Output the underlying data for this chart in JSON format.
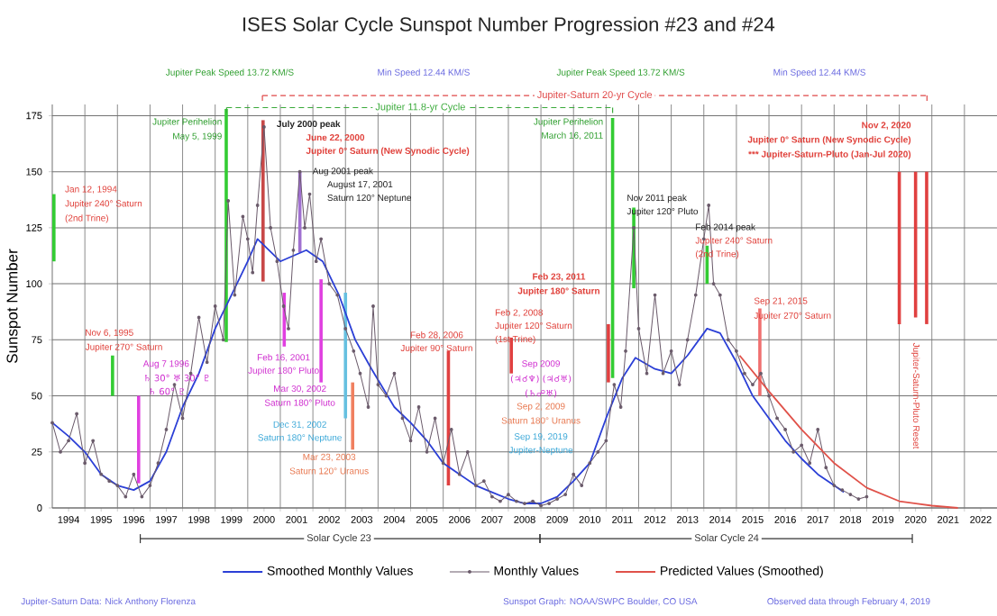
{
  "chart_data": {
    "type": "line",
    "title": "ISES Solar Cycle Sunspot Number Progression  #23 and #24",
    "ylabel": "Sunspot Number",
    "xlim": [
      1994,
      2023
    ],
    "ylim": [
      0,
      180
    ],
    "xticks": [
      {
        "value": 1994.5,
        "label": "1994"
      },
      {
        "value": 1995.5,
        "label": "1995"
      },
      {
        "value": 1996.5,
        "label": "1996"
      },
      {
        "value": 1997.5,
        "label": "1997"
      },
      {
        "value": 1998.5,
        "label": "1998"
      },
      {
        "value": 1999.5,
        "label": "1999"
      },
      {
        "value": 2000.5,
        "label": "2000"
      },
      {
        "value": 2001.5,
        "label": "2001"
      },
      {
        "value": 2002.5,
        "label": "2002"
      },
      {
        "value": 2003.5,
        "label": "2003"
      },
      {
        "value": 2004.5,
        "label": "2004"
      },
      {
        "value": 2005.5,
        "label": "2005"
      },
      {
        "value": 2006.5,
        "label": "2006"
      },
      {
        "value": 2007.5,
        "label": "2007"
      },
      {
        "value": 2008.5,
        "label": "2008"
      },
      {
        "value": 2009.5,
        "label": "2009"
      },
      {
        "value": 2010.5,
        "label": "2010"
      },
      {
        "value": 2011.5,
        "label": "2011"
      },
      {
        "value": 2012.5,
        "label": "2012"
      },
      {
        "value": 2013.5,
        "label": "2013"
      },
      {
        "value": 2014.5,
        "label": "2014"
      },
      {
        "value": 2015.5,
        "label": "2015"
      },
      {
        "value": 2016.5,
        "label": "2016"
      },
      {
        "value": 2017.5,
        "label": "2017"
      },
      {
        "value": 2018.5,
        "label": "2018"
      },
      {
        "value": 2019.5,
        "label": "2019"
      },
      {
        "value": 2020.5,
        "label": "2020"
      },
      {
        "value": 2021.5,
        "label": "2021"
      },
      {
        "value": 2022.5,
        "label": "2022"
      },
      {
        "value": 1995,
        "label": null
      },
      {
        "value": 1996,
        "label": null
      },
      {
        "value": 1997,
        "label": null
      },
      {
        "value": 1998,
        "label": null
      },
      {
        "value": 1999,
        "label": null
      },
      {
        "value": 2000,
        "label": null
      },
      {
        "value": 2001,
        "label": null
      },
      {
        "value": 2002,
        "label": null
      },
      {
        "value": 2003,
        "label": null
      },
      {
        "value": 2004,
        "label": null
      },
      {
        "value": 2005,
        "label": null
      },
      {
        "value": 2006,
        "label": null
      },
      {
        "value": 2007,
        "label": null
      },
      {
        "value": 2008,
        "label": null
      },
      {
        "value": 2009,
        "label": null
      },
      {
        "value": 2010,
        "label": null
      },
      {
        "value": 2011,
        "label": null
      },
      {
        "value": 2012,
        "label": null
      },
      {
        "value": 2013,
        "label": null
      },
      {
        "value": 2014,
        "label": null
      },
      {
        "value": 2015,
        "label": null
      },
      {
        "value": 2016,
        "label": null
      },
      {
        "value": 2017,
        "label": null
      },
      {
        "value": 2018,
        "label": null
      },
      {
        "value": 2019,
        "label": null
      },
      {
        "value": 2020,
        "label": null
      },
      {
        "value": 2021,
        "label": null
      },
      {
        "value": 2022,
        "label": null
      }
    ],
    "yticks": [
      0,
      25,
      50,
      75,
      100,
      125,
      150,
      175
    ],
    "grid": true,
    "legend": "bottom",
    "series": [
      {
        "name": "Smoothed Monthly Values",
        "color": "#2b3fd6",
        "x": [
          1994.0,
          1994.5,
          1995.0,
          1995.5,
          1996.0,
          1996.5,
          1997.0,
          1997.5,
          1998.0,
          1998.5,
          1999.0,
          1999.5,
          2000.0,
          2000.3,
          2001.0,
          2001.8,
          2002.3,
          2002.8,
          2003.3,
          2003.8,
          2004.5,
          2005.0,
          2005.5,
          2006.0,
          2006.5,
          2007.0,
          2007.5,
          2008.0,
          2008.5,
          2009.0,
          2009.5,
          2010.0,
          2010.5,
          2011.0,
          2011.5,
          2011.9,
          2012.5,
          2013.0,
          2013.5,
          2014.1,
          2014.5,
          2015.0,
          2015.5,
          2016.0,
          2016.5,
          2017.0,
          2017.5,
          2018.0,
          2018.3
        ],
        "values": [
          38,
          32,
          25,
          15,
          10,
          8,
          12,
          25,
          45,
          60,
          80,
          95,
          110,
          120,
          110,
          115,
          110,
          95,
          75,
          62,
          45,
          38,
          30,
          20,
          15,
          10,
          7,
          4,
          2,
          2,
          5,
          12,
          20,
          40,
          58,
          67,
          62,
          60,
          68,
          80,
          78,
          65,
          50,
          40,
          30,
          22,
          15,
          10,
          7
        ]
      },
      {
        "name": "Monthly Values",
        "color": "#6a5a6a",
        "marker": "circle",
        "x": [
          1994.0,
          1994.25,
          1994.5,
          1994.75,
          1995.0,
          1995.25,
          1995.5,
          1995.75,
          1996.0,
          1996.25,
          1996.5,
          1996.75,
          1997.0,
          1997.25,
          1997.5,
          1997.75,
          1998.0,
          1998.25,
          1998.5,
          1998.75,
          1999.0,
          1999.25,
          1999.4,
          1999.6,
          1999.85,
          2000.0,
          2000.15,
          2000.3,
          2000.5,
          2000.7,
          2000.9,
          2001.1,
          2001.25,
          2001.4,
          2001.6,
          2001.75,
          2001.9,
          2002.1,
          2002.25,
          2002.5,
          2002.75,
          2003.0,
          2003.25,
          2003.45,
          2003.7,
          2003.85,
          2004.0,
          2004.25,
          2004.5,
          2004.75,
          2005.0,
          2005.25,
          2005.5,
          2005.75,
          2006.0,
          2006.25,
          2006.5,
          2006.75,
          2007.0,
          2007.25,
          2007.5,
          2007.75,
          2008.0,
          2008.25,
          2008.5,
          2008.75,
          2009.0,
          2009.25,
          2009.5,
          2009.75,
          2010.0,
          2010.25,
          2010.5,
          2010.75,
          2011.0,
          2011.25,
          2011.45,
          2011.6,
          2011.85,
          2012.0,
          2012.25,
          2012.5,
          2012.75,
          2013.0,
          2013.25,
          2013.5,
          2013.75,
          2014.0,
          2014.15,
          2014.3,
          2014.5,
          2014.75,
          2015.0,
          2015.25,
          2015.5,
          2015.75,
          2016.0,
          2016.25,
          2016.5,
          2016.75,
          2017.0,
          2017.25,
          2017.5,
          2017.75,
          2018.0,
          2018.25,
          2018.5,
          2018.75,
          2019.0
        ],
        "values": [
          38,
          25,
          30,
          42,
          20,
          30,
          15,
          12,
          10,
          5,
          15,
          5,
          10,
          20,
          35,
          55,
          40,
          60,
          85,
          65,
          90,
          75,
          137,
          95,
          130,
          120,
          105,
          135,
          170,
          125,
          110,
          90,
          80,
          115,
          150,
          125,
          140,
          110,
          120,
          100,
          95,
          80,
          70,
          60,
          45,
          90,
          55,
          50,
          60,
          40,
          30,
          45,
          25,
          40,
          20,
          35,
          15,
          25,
          10,
          12,
          5,
          3,
          6,
          3,
          2,
          3,
          1,
          2,
          4,
          6,
          15,
          10,
          20,
          25,
          30,
          55,
          45,
          70,
          125,
          80,
          60,
          95,
          60,
          70,
          55,
          75,
          95,
          120,
          135,
          100,
          95,
          75,
          70,
          60,
          55,
          60,
          50,
          40,
          35,
          25,
          28,
          20,
          35,
          18,
          10,
          8,
          6,
          4,
          5
        ]
      },
      {
        "name": "Predicted Values (Smoothed)",
        "color": "#e0524a",
        "x": [
          2015.1,
          2016.0,
          2017.0,
          2018.0,
          2019.0,
          2020.0,
          2021.0,
          2021.8
        ],
        "values": [
          68,
          52,
          35,
          20,
          9,
          3,
          1,
          0
        ]
      }
    ],
    "ref_lines": [
      {
        "axis": "x",
        "value": 1994.05,
        "color": "#33cc33"
      },
      {
        "axis": "x",
        "value": 1995.85,
        "color": "#33cc33"
      },
      {
        "axis": "x",
        "value": 1996.65,
        "color": "#e040e0"
      },
      {
        "axis": "x",
        "value": 1999.34,
        "color": "#33cc33"
      },
      {
        "axis": "x",
        "value": 2000.47,
        "color": "#c84848"
      },
      {
        "axis": "x",
        "value": 2001.6,
        "color": "#a070d0"
      },
      {
        "axis": "x",
        "value": 2001.12,
        "color": "#e040e0"
      },
      {
        "axis": "x",
        "value": 2002.25,
        "color": "#e040e0"
      },
      {
        "axis": "x",
        "value": 2003.0,
        "color": "#66c0e0"
      },
      {
        "axis": "x",
        "value": 2003.22,
        "color": "#f08060"
      },
      {
        "axis": "x",
        "value": 2006.16,
        "color": "#e04040"
      },
      {
        "axis": "x",
        "value": 2008.09,
        "color": "#e04040"
      },
      {
        "axis": "x",
        "value": 2011.07,
        "color": "#e04040"
      },
      {
        "axis": "x",
        "value": 2011.2,
        "color": "#33cc33"
      },
      {
        "axis": "x",
        "value": 2011.85,
        "color": "#33cc33"
      },
      {
        "axis": "x",
        "value": 2014.1,
        "color": "#33cc33"
      },
      {
        "axis": "x",
        "value": 2015.72,
        "color": "#f07070"
      },
      {
        "axis": "x",
        "value": 2020.0,
        "color": "#e04040"
      },
      {
        "axis": "x",
        "value": 2020.5,
        "color": "#e04040"
      },
      {
        "axis": "x",
        "value": 2020.84,
        "color": "#e04040"
      }
    ],
    "annotations": [
      "Jupiter Perihelion",
      "May 5, 1999",
      "July 2000 peak",
      "June 22, 2000",
      "Jupiter 0° Saturn (New Synodic Cycle)",
      "Aug 2001 peak",
      "August 17, 2001",
      "Saturn 120° Neptune",
      "Jan 12, 1994",
      "Jupiter 240° Saturn",
      "(2nd Trine)",
      "Nov 6, 1995",
      "Jupiter 270° Saturn",
      "Aug 7 1996",
      "♄ 30° ♅ 30° ♇",
      "♄ 60° ♇",
      "Feb 16, 2001",
      "Jupiter 180° Pluto",
      "Mar 30, 2002",
      "Saturn 180° Pluto",
      "Dec 31, 2002",
      "Saturn 180° Neptune",
      "Mar 23, 2003",
      "Saturn 120° Uranus",
      "Feb 28, 2006",
      "Jupiter 90° Saturn",
      "Feb 23, 2011",
      "Jupiter 180° Saturn",
      "Feb 2, 2008",
      "Jupiter 120° Saturn",
      "(1st Trine)",
      "Sep 2009",
      "(♃☌♆) (♃☌♅)",
      "(♄☍♅)",
      "Sep 2, 2009",
      "Saturn 180° Uranus",
      "Sep 19, 2019",
      "Jupiter-Neptune",
      "Jupiter Perihelion",
      "March 16, 2011",
      "Nov 2011 peak",
      "Jupiter 120° Pluto",
      "Feb 2014 peak",
      "Jupiter 240° Saturn",
      "(2nd Trine)",
      "Sep 21, 2015",
      "Jupiter 270° Saturn",
      "Nov 2, 2020",
      "Jupiter 0° Saturn (New Synodic Cycle)",
      "*** Jupiter-Saturn-Pluto (Jan-Jul 2020)",
      "Jupiter-Saturn-Pluto Reset",
      "Jupiter Peak Speed 13.72 KM/S",
      "Min Speed 12.44 KM/S",
      "Jupiter Peak Speed 13.72 KM/S",
      "Min Speed 12.44 KM/S",
      "Jupiter-Saturn Data: Nick Anthony Florenza",
      "Sunspot Graph: NOAA/SWPC Boulder, CO USA",
      "Observed data through February 4, 2019",
      "Jupiter 11.8-yr Cycle",
      "Jupiter-Saturn 20-yr Cycle",
      "Solar Cycle 23",
      "Solar Cycle 24"
    ]
  }
}
